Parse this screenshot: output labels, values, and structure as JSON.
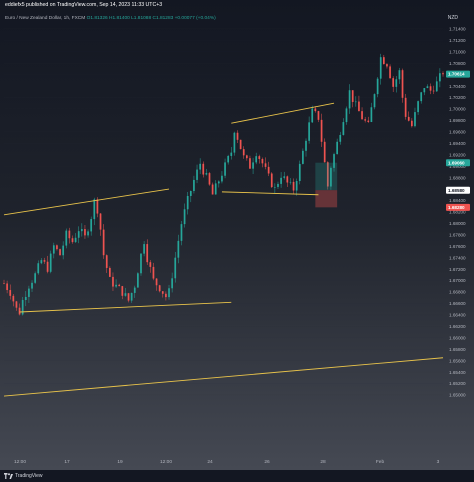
{
  "header": {
    "publisher": "eddiefx5 published on TradingView.com, Sep 14, 2023 11:33 UTC+3",
    "symbol": "Euro / New Zealand Dollar, 1h, FXCM",
    "ohlc": "O1.81326 H1.81400 L1.81088 C1.81283 +0.00077 (+0.04%)",
    "currency": "NZD"
  },
  "footer": {
    "brand": "TradingView"
  },
  "chart_data": {
    "type": "candlestick",
    "symbol": "EURNZD",
    "timeframe": "1h",
    "y_axis": {
      "range": [
        1.6395,
        1.7145
      ],
      "ticks": [
        "1.71400",
        "1.71200",
        "1.71000",
        "1.70800",
        "1.70600",
        "1.70400",
        "1.70200",
        "1.70000",
        "1.69800",
        "1.69600",
        "1.69400",
        "1.69200",
        "1.69000",
        "1.68800",
        "1.68600",
        "1.68400",
        "1.68200",
        "1.68000",
        "1.67800",
        "1.67600",
        "1.67400",
        "1.67200",
        "1.67000",
        "1.66800",
        "1.66600",
        "1.66400",
        "1.66200",
        "1.66000",
        "1.65800",
        "1.65600",
        "1.65400",
        "1.65200",
        "1.65000"
      ]
    },
    "x_axis": {
      "ticks": [
        "12:00",
        "17",
        "19",
        "12:00",
        "24",
        "26",
        "28",
        "Feb",
        "3"
      ]
    },
    "price_labels": [
      {
        "text": "1.70614",
        "color": "#26a69a"
      },
      {
        "text": "1.69060",
        "color": "#26a69a"
      },
      {
        "text": "1.68580",
        "color": "#131722"
      },
      {
        "text": "1.68280",
        "color": "#ef5350"
      }
    ],
    "colors": {
      "up": "#26a69a",
      "down": "#ef5350",
      "trendline": "#e8c34b"
    },
    "close_path": [
      [
        0,
        1.6695
      ],
      [
        2,
        1.668
      ],
      [
        4,
        1.665
      ],
      [
        5,
        1.6645
      ],
      [
        6,
        1.6665
      ],
      [
        8,
        1.6692
      ],
      [
        10,
        1.671
      ],
      [
        12,
        1.6735
      ],
      [
        14,
        1.6722
      ],
      [
        16,
        1.676
      ],
      [
        18,
        1.6745
      ],
      [
        20,
        1.678
      ],
      [
        22,
        1.6768
      ],
      [
        24,
        1.679
      ],
      [
        26,
        1.6775
      ],
      [
        28,
        1.6812
      ],
      [
        29,
        1.6838
      ],
      [
        30,
        1.6825
      ],
      [
        31,
        1.679
      ],
      [
        32,
        1.6745
      ],
      [
        34,
        1.67
      ],
      [
        36,
        1.669
      ],
      [
        38,
        1.668
      ],
      [
        40,
        1.6665
      ],
      [
        42,
        1.6692
      ],
      [
        44,
        1.6745
      ],
      [
        45,
        1.677
      ],
      [
        46,
        1.674
      ],
      [
        48,
        1.67
      ],
      [
        50,
        1.6688
      ],
      [
        52,
        1.6672
      ],
      [
        53,
        1.668
      ],
      [
        55,
        1.674
      ],
      [
        57,
        1.68
      ],
      [
        59,
        1.684
      ],
      [
        61,
        1.6875
      ],
      [
        63,
        1.6905
      ],
      [
        65,
        1.688
      ],
      [
        67,
        1.685
      ],
      [
        69,
        1.6875
      ],
      [
        71,
        1.69
      ],
      [
        73,
        1.6925
      ],
      [
        74,
        1.6965
      ],
      [
        75,
        1.695
      ],
      [
        77,
        1.6915
      ],
      [
        79,
        1.69
      ],
      [
        81,
        1.6925
      ],
      [
        83,
        1.6905
      ],
      [
        85,
        1.688
      ],
      [
        87,
        1.686
      ],
      [
        89,
        1.6885
      ],
      [
        91,
        1.687
      ],
      [
        93,
        1.686
      ],
      [
        95,
        1.69
      ],
      [
        97,
        1.695
      ],
      [
        99,
        1.6995
      ],
      [
        101,
        1.6985
      ],
      [
        103,
        1.6905
      ],
      [
        104,
        1.6865
      ],
      [
        105,
        1.69
      ],
      [
        107,
        1.694
      ],
      [
        109,
        1.6985
      ],
      [
        111,
        1.703
      ],
      [
        113,
        1.7005
      ],
      [
        115,
        1.6985
      ],
      [
        117,
        1.697
      ],
      [
        119,
        1.703
      ],
      [
        121,
        1.709
      ],
      [
        123,
        1.708
      ],
      [
        125,
        1.704
      ],
      [
        127,
        1.7065
      ],
      [
        128,
        1.702
      ],
      [
        129,
        1.699
      ],
      [
        131,
        1.697
      ],
      [
        133,
        1.701
      ],
      [
        135,
        1.704
      ],
      [
        137,
        1.7032
      ],
      [
        139,
        1.7045
      ],
      [
        141,
        1.7065
      ]
    ],
    "trendlines": [
      {
        "from": [
          0,
          1.6815
        ],
        "to": [
          53,
          1.686
        ]
      },
      {
        "from": [
          5,
          1.6645
        ],
        "to": [
          73,
          1.6662
        ]
      },
      {
        "from": [
          73,
          1.6975
        ],
        "to": [
          106,
          1.701
        ]
      },
      {
        "from": [
          70,
          1.6855
        ],
        "to": [
          101,
          1.685
        ]
      },
      {
        "from": [
          0,
          1.6498
        ],
        "to": [
          141,
          1.6565
        ]
      }
    ],
    "position": {
      "start": 100,
      "end": 107,
      "entry": 1.6858,
      "target": 1.6906,
      "stop": 1.6828
    }
  }
}
